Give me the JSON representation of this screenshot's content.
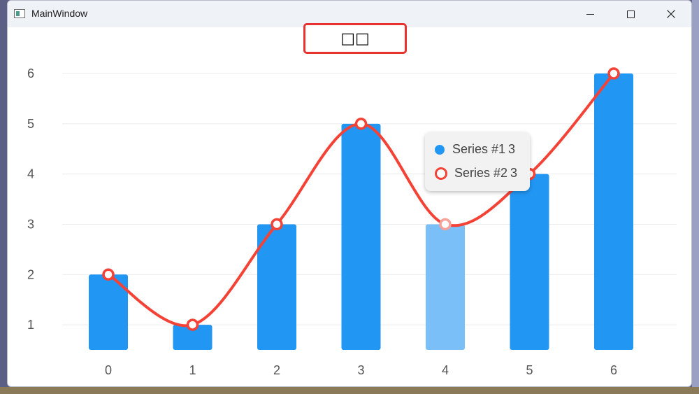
{
  "window": {
    "title": "MainWindow",
    "controls": {
      "minimize": "minimize",
      "maximize": "maximize",
      "close": "close"
    }
  },
  "chart_title_text": "□□",
  "chart_data": {
    "type": "bar",
    "categories": [
      "0",
      "1",
      "2",
      "3",
      "4",
      "5",
      "6"
    ],
    "series": [
      {
        "name": "Series #1",
        "type": "bar",
        "values": [
          2,
          1,
          3,
          5,
          3,
          4,
          6
        ],
        "color": "#2196f3",
        "highlight_color": "#7bbff8"
      },
      {
        "name": "Series #2",
        "type": "line",
        "smooth": true,
        "values": [
          2,
          1,
          3,
          5,
          3,
          4,
          6
        ],
        "color": "#f44336"
      }
    ],
    "y_ticks": [
      "1",
      "2",
      "3",
      "4",
      "5",
      "6"
    ],
    "ylim": [
      0.5,
      6
    ],
    "grid": true,
    "hover_index": 4,
    "tooltip": [
      {
        "name": "Series #1",
        "value": "3"
      },
      {
        "name": "Series #2",
        "value": "3"
      }
    ]
  },
  "colors": {
    "grid": "#ebebeb",
    "axis_text": "#555555",
    "accent_red": "#e8322f"
  }
}
